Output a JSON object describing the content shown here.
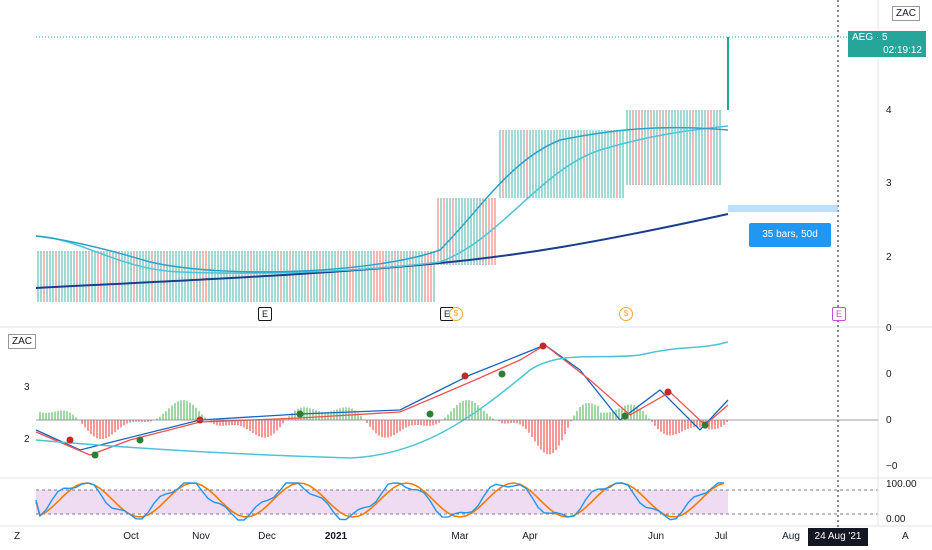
{
  "symbol_tag_top": "ZAC",
  "symbol_tag_mid": "ZAC",
  "price_tag": {
    "line1": "AEG · 5",
    "line2": "02:19:12"
  },
  "range_label": "35 bars, 50d",
  "crosshair_date": "24 Aug '21",
  "corner_left": "Z",
  "corner_right": "A",
  "price_axis": [
    "4",
    "3",
    "2"
  ],
  "osc_axis": [
    "0",
    "0",
    "0",
    "−0"
  ],
  "left_axis": [
    "3",
    "2"
  ],
  "stoch_axis": [
    "100.00",
    "0.00"
  ],
  "months": [
    "Oct",
    "Nov",
    "Dec",
    "2021",
    "Mar",
    "Apr",
    "Jun",
    "Jul",
    "Aug"
  ],
  "events": {
    "earnings": "E",
    "dividend": "$"
  },
  "colors": {
    "teal": "#26a69a",
    "red": "#ef5350",
    "blue": "#1e6fd9",
    "navy": "#1a3e8c",
    "cyan": "#4cc3d9",
    "orange": "#f57c00",
    "stoch_blue": "#2196f3",
    "band": "#e1bee7"
  },
  "chart_data": {
    "type": "candlestick",
    "price_axis_ticks": [
      4,
      3,
      2
    ],
    "oscillator_axis_ticks": [
      0,
      0,
      0,
      0
    ],
    "stoch_axis_ticks": [
      100.0,
      0.0
    ],
    "x_ticks": [
      "Oct",
      "Nov",
      "Dec",
      "2021",
      "Mar",
      "Apr",
      "Jun",
      "Jul",
      "Aug",
      "24 Aug '21"
    ],
    "last_price_label": "AEG · 5",
    "countdown": "02:19:12",
    "measure": "35 bars, 50d"
  }
}
